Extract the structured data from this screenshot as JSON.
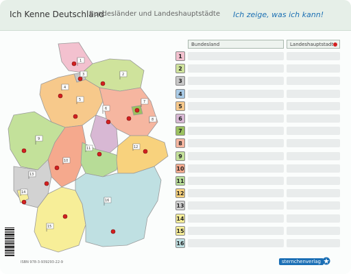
{
  "header": {
    "title": "Ich Kenne Deutschland",
    "subtitle": "Bundesländer und Landeshauptstädte",
    "slogan": "Ich zeige, was ich kann!"
  },
  "table": {
    "col1": "Bundesland",
    "col2": "Landeshauptstadt",
    "rows": [
      {
        "n": "1",
        "color": "#f3c1cf"
      },
      {
        "n": "2",
        "color": "#cfe39c"
      },
      {
        "n": "3",
        "color": "#c7c7c7"
      },
      {
        "n": "4",
        "color": "#a9cbe6"
      },
      {
        "n": "5",
        "color": "#f7c98b"
      },
      {
        "n": "6",
        "color": "#d8b8d4"
      },
      {
        "n": "7",
        "color": "#9bc15f"
      },
      {
        "n": "8",
        "color": "#f6b6a0"
      },
      {
        "n": "9",
        "color": "#c3e19a"
      },
      {
        "n": "10",
        "color": "#f5a98d"
      },
      {
        "n": "11",
        "color": "#b7dc97"
      },
      {
        "n": "12",
        "color": "#f8d27d"
      },
      {
        "n": "13",
        "color": "#d2d2d2"
      },
      {
        "n": "14",
        "color": "#f7ee98"
      },
      {
        "n": "15",
        "color": "#f7ee98"
      },
      {
        "n": "16",
        "color": "#bfe0e2"
      }
    ]
  },
  "footer": {
    "isbn": "ISBN 978-3-939293-22-9",
    "publisher": "sternchenverlag"
  },
  "map_flags": [
    "1",
    "2",
    "3",
    "4",
    "5",
    "6",
    "7",
    "8",
    "9",
    "10",
    "11",
    "12",
    "13",
    "14",
    "15",
    "16"
  ]
}
